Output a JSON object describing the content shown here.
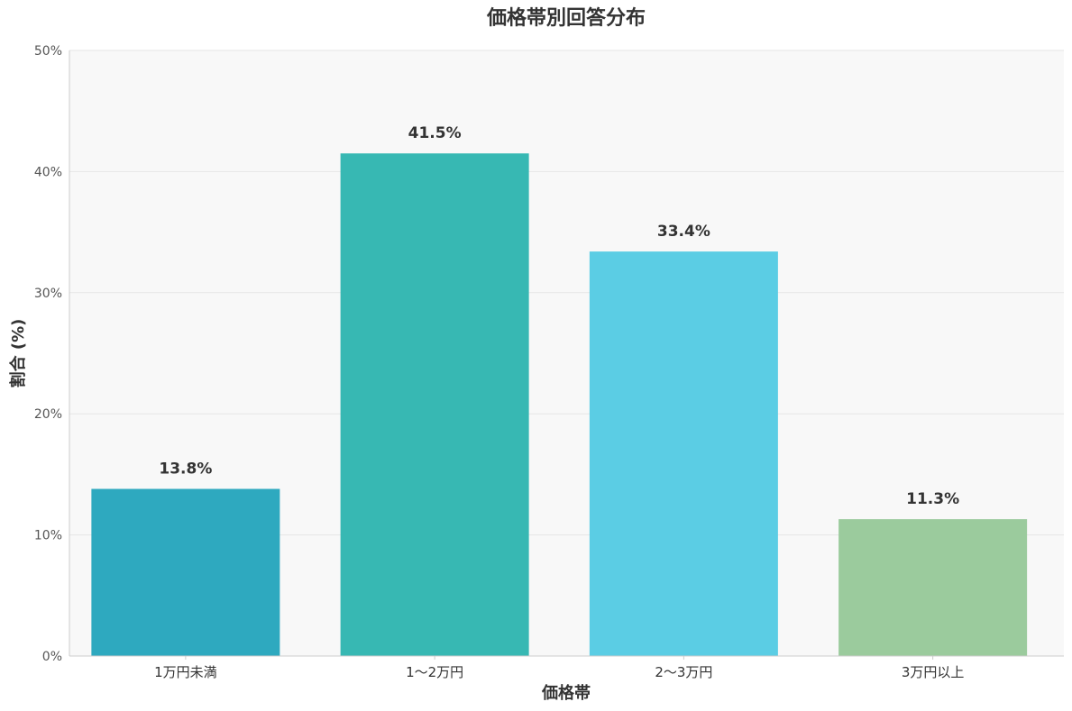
{
  "chart_data": {
    "type": "bar",
    "title": "価格帯別回答分布",
    "xlabel": "価格帯",
    "ylabel": "割合 (%)",
    "categories": [
      "1万円未満",
      "1〜2万円",
      "2〜3万円",
      "3万円以上"
    ],
    "values": [
      13.8,
      41.5,
      33.4,
      11.3
    ],
    "value_labels": [
      "13.8%",
      "41.5%",
      "33.4%",
      "11.3%"
    ],
    "colors": [
      "#2ea9bf",
      "#37b8b3",
      "#5bcde4",
      "#9bcb9d"
    ],
    "ylim": [
      0,
      50
    ],
    "yticks": [
      0,
      10,
      20,
      30,
      40,
      50
    ],
    "ytick_labels": [
      "0%",
      "10%",
      "20%",
      "30%",
      "40%",
      "50%"
    ],
    "grid": true,
    "plot_background": "#f8f8f8"
  }
}
